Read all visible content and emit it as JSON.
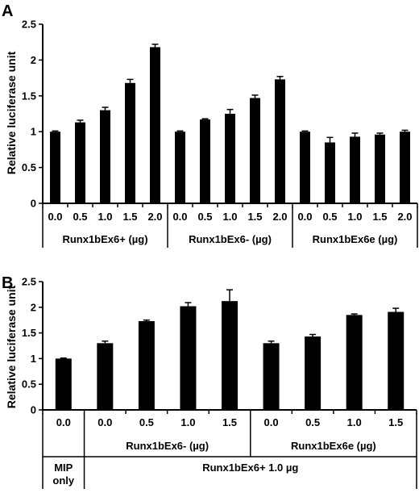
{
  "chart_data": [
    {
      "type": "bar",
      "panel_label": "A",
      "ylabel": "Relative luciferase unit",
      "ylim": [
        0,
        2.5
      ],
      "yticks": [
        "0",
        "0.5",
        "1",
        "1.5",
        "2",
        "2.5"
      ],
      "categories": [
        "0.0",
        "0.5",
        "1.0",
        "1.5",
        "2.0",
        "0.0",
        "0.5",
        "1.0",
        "1.5",
        "2.0",
        "0.0",
        "0.5",
        "1.0",
        "1.5",
        "2.0"
      ],
      "values": [
        1.0,
        1.13,
        1.3,
        1.68,
        2.18,
        1.0,
        1.17,
        1.25,
        1.47,
        1.73,
        1.0,
        0.85,
        0.93,
        0.96,
        1.0
      ],
      "errors": [
        0.01,
        0.03,
        0.04,
        0.05,
        0.04,
        0.01,
        0.01,
        0.06,
        0.04,
        0.04,
        0.01,
        0.07,
        0.05,
        0.02,
        0.02
      ],
      "groups": [
        {
          "label": "Runx1bEx6+  (µg)",
          "count": 5
        },
        {
          "label": "Runx1bEx6-  (µg)",
          "count": 5
        },
        {
          "label": "Runx1bEx6e  (µg)",
          "count": 5
        }
      ],
      "bar_color": "#000000",
      "grid": false,
      "legend": "none"
    },
    {
      "type": "bar",
      "panel_label": "B",
      "ylabel": "Relative luciferase unit",
      "ylim": [
        0,
        2.5
      ],
      "yticks": [
        "0",
        "0.5",
        "1",
        "1.5",
        "2",
        "2.5"
      ],
      "categories": [
        "0.0",
        "0.0",
        "0.5",
        "1.0",
        "1.5",
        "0.0",
        "0.5",
        "1.0",
        "1.5"
      ],
      "values": [
        1.0,
        1.3,
        1.73,
        2.02,
        2.12,
        1.3,
        1.43,
        1.85,
        1.91
      ],
      "errors": [
        0.01,
        0.04,
        0.02,
        0.07,
        0.22,
        0.04,
        0.04,
        0.02,
        0.07
      ],
      "subgroups": [
        {
          "label": "",
          "count": 1
        },
        {
          "label": "Runx1bEx6- (µg)",
          "count": 4
        },
        {
          "label": "Runx1bEx6e (µg)",
          "count": 4
        }
      ],
      "groups": [
        {
          "label": "MIP only",
          "count": 1
        },
        {
          "label": "Runx1bEx6+ 1.0 µg",
          "count": 8
        }
      ],
      "bar_color": "#000000",
      "grid": false,
      "legend": "none"
    }
  ]
}
